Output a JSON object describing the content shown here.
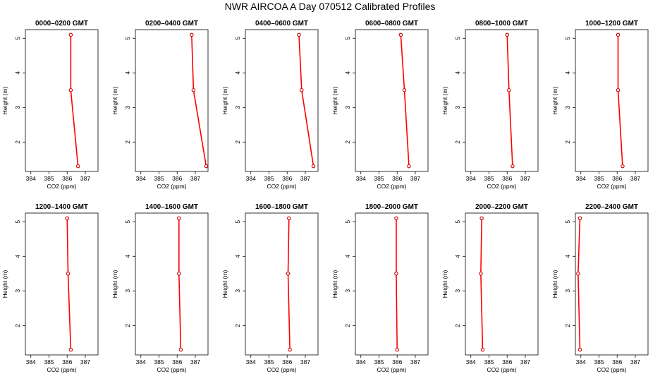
{
  "figure": {
    "title": "NWR AIRCOA A  Day 070512  Calibrated Profiles"
  },
  "colors": {
    "line": "#ff0000",
    "marker": "#cc0000",
    "axis": "#000000"
  },
  "chart_data": [
    {
      "type": "line",
      "title": "0000–0200 GMT",
      "xlabel": "CO2 (ppm)",
      "ylabel": "Height (m)",
      "xlim": [
        383.7,
        387.7
      ],
      "ylim": [
        1.15,
        5.25
      ],
      "xticks": [
        "384",
        "385",
        "386",
        "387"
      ],
      "yticks": [
        "2",
        "3",
        "4",
        "5"
      ],
      "series": [
        {
          "x": [
            386.6,
            386.2,
            386.2
          ],
          "y": [
            1.3,
            3.5,
            5.1
          ]
        }
      ]
    },
    {
      "type": "line",
      "title": "0200–0400 GMT",
      "xlabel": "CO2 (ppm)",
      "ylabel": "Height (m)",
      "xlim": [
        383.7,
        387.7
      ],
      "ylim": [
        1.15,
        5.25
      ],
      "xticks": [
        "384",
        "385",
        "386",
        "387"
      ],
      "yticks": [
        "2",
        "3",
        "4",
        "5"
      ],
      "series": [
        {
          "x": [
            387.6,
            386.9,
            386.8
          ],
          "y": [
            1.3,
            3.5,
            5.1
          ]
        }
      ]
    },
    {
      "type": "line",
      "title": "0400–0600 GMT",
      "xlabel": "CO2 (ppm)",
      "ylabel": "Height (m)",
      "xlim": [
        383.7,
        387.7
      ],
      "ylim": [
        1.15,
        5.25
      ],
      "xticks": [
        "384",
        "385",
        "386",
        "387"
      ],
      "yticks": [
        "2",
        "3",
        "4",
        "5"
      ],
      "series": [
        {
          "x": [
            387.45,
            386.8,
            386.65
          ],
          "y": [
            1.3,
            3.5,
            5.1
          ]
        }
      ]
    },
    {
      "type": "line",
      "title": "0600–0800 GMT",
      "xlabel": "CO2 (ppm)",
      "ylabel": "Height (m)",
      "xlim": [
        383.7,
        387.7
      ],
      "ylim": [
        1.15,
        5.25
      ],
      "xticks": [
        "384",
        "385",
        "386",
        "387"
      ],
      "yticks": [
        "2",
        "3",
        "4",
        "5"
      ],
      "series": [
        {
          "x": [
            386.65,
            386.4,
            386.2
          ],
          "y": [
            1.3,
            3.5,
            5.1
          ]
        }
      ]
    },
    {
      "type": "line",
      "title": "0800–1000 GMT",
      "xlabel": "CO2 (ppm)",
      "ylabel": "Height (m)",
      "xlim": [
        383.7,
        387.7
      ],
      "ylim": [
        1.15,
        5.25
      ],
      "xticks": [
        "384",
        "385",
        "386",
        "387"
      ],
      "yticks": [
        "2",
        "3",
        "4",
        "5"
      ],
      "series": [
        {
          "x": [
            386.3,
            386.1,
            386.0
          ],
          "y": [
            1.3,
            3.5,
            5.1
          ]
        }
      ]
    },
    {
      "type": "line",
      "title": "1000–1200 GMT",
      "xlabel": "CO2 (ppm)",
      "ylabel": "Height (m)",
      "xlim": [
        383.7,
        387.7
      ],
      "ylim": [
        1.15,
        5.25
      ],
      "xticks": [
        "384",
        "385",
        "386",
        "387"
      ],
      "yticks": [
        "2",
        "3",
        "4",
        "5"
      ],
      "series": [
        {
          "x": [
            386.3,
            386.05,
            386.05
          ],
          "y": [
            1.3,
            3.5,
            5.1
          ]
        }
      ]
    },
    {
      "type": "line",
      "title": "1200–1400 GMT",
      "xlabel": "CO2 (ppm)",
      "ylabel": "Height (m)",
      "xlim": [
        383.7,
        387.7
      ],
      "ylim": [
        1.15,
        5.25
      ],
      "xticks": [
        "384",
        "385",
        "386",
        "387"
      ],
      "yticks": [
        "2",
        "3",
        "4",
        "5"
      ],
      "series": [
        {
          "x": [
            386.2,
            386.05,
            386.0
          ],
          "y": [
            1.3,
            3.5,
            5.1
          ]
        }
      ]
    },
    {
      "type": "line",
      "title": "1400–1600 GMT",
      "xlabel": "CO2 (ppm)",
      "ylabel": "Height (m)",
      "xlim": [
        383.7,
        387.7
      ],
      "ylim": [
        1.15,
        5.25
      ],
      "xticks": [
        "384",
        "385",
        "386",
        "387"
      ],
      "yticks": [
        "2",
        "3",
        "4",
        "5"
      ],
      "series": [
        {
          "x": [
            386.2,
            386.1,
            386.1
          ],
          "y": [
            1.3,
            3.5,
            5.1
          ]
        }
      ]
    },
    {
      "type": "line",
      "title": "1600–1800 GMT",
      "xlabel": "CO2 (ppm)",
      "ylabel": "Height (m)",
      "xlim": [
        383.7,
        387.7
      ],
      "ylim": [
        1.15,
        5.25
      ],
      "xticks": [
        "384",
        "385",
        "386",
        "387"
      ],
      "yticks": [
        "2",
        "3",
        "4",
        "5"
      ],
      "series": [
        {
          "x": [
            386.15,
            386.05,
            386.1
          ],
          "y": [
            1.3,
            3.5,
            5.1
          ]
        }
      ]
    },
    {
      "type": "line",
      "title": "1800–2000 GMT",
      "xlabel": "CO2 (ppm)",
      "ylabel": "Height (m)",
      "xlim": [
        383.7,
        387.7
      ],
      "ylim": [
        1.15,
        5.25
      ],
      "xticks": [
        "384",
        "385",
        "386",
        "387"
      ],
      "yticks": [
        "2",
        "3",
        "4",
        "5"
      ],
      "series": [
        {
          "x": [
            386.0,
            385.95,
            385.95
          ],
          "y": [
            1.3,
            3.5,
            5.1
          ]
        }
      ]
    },
    {
      "type": "line",
      "title": "2000–2200 GMT",
      "xlabel": "CO2 (ppm)",
      "ylabel": "Height (m)",
      "xlim": [
        383.7,
        387.7
      ],
      "ylim": [
        1.15,
        5.25
      ],
      "xticks": [
        "384",
        "385",
        "386",
        "387"
      ],
      "yticks": [
        "2",
        "3",
        "4",
        "5"
      ],
      "series": [
        {
          "x": [
            384.65,
            384.55,
            384.6
          ],
          "y": [
            1.3,
            3.5,
            5.1
          ]
        }
      ]
    },
    {
      "type": "line",
      "title": "2200–2400 GMT",
      "xlabel": "CO2 (ppm)",
      "ylabel": "Height (m)",
      "xlim": [
        383.7,
        387.7
      ],
      "ylim": [
        1.15,
        5.25
      ],
      "xticks": [
        "384",
        "385",
        "386",
        "387"
      ],
      "yticks": [
        "2",
        "3",
        "4",
        "5"
      ],
      "series": [
        {
          "x": [
            383.95,
            383.85,
            383.95
          ],
          "y": [
            1.3,
            3.5,
            5.1
          ]
        }
      ]
    }
  ]
}
